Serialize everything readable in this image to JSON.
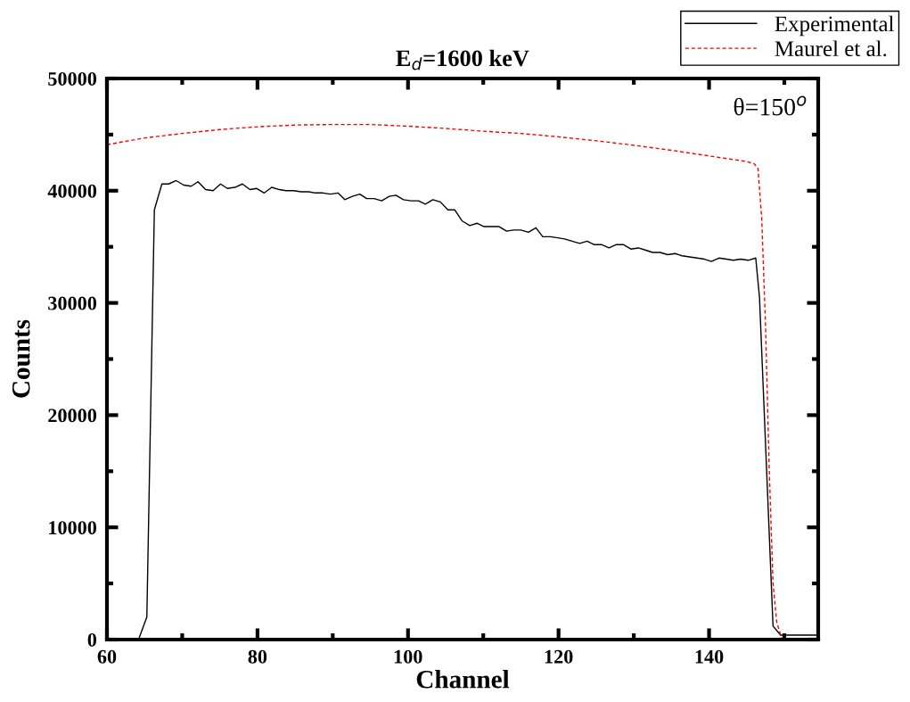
{
  "chart_data": {
    "type": "line",
    "title": "E$_{d}$=1600 keV",
    "xlabel": "Channel",
    "ylabel": "Counts",
    "annotations": [
      "θ=150$^{o}$"
    ],
    "xlim": [
      60,
      154.5
    ],
    "xticks": [
      60,
      80,
      100,
      120,
      140
    ],
    "ylim": [
      0,
      50000
    ],
    "yticks": [
      0,
      10000,
      20000,
      30000,
      40000,
      50000
    ],
    "legend": "top right",
    "grid": false,
    "series": [
      {
        "name": "Experimental",
        "color": "#000000",
        "line_style": "solid",
        "x": [
          64.2,
          65.3,
          66.3,
          67.3,
          68.2,
          69.2,
          70.2,
          71.2,
          72.1,
          73.1,
          74.1,
          75.1,
          76.0,
          77.0,
          78.0,
          79.0,
          79.9,
          80.9,
          81.9,
          82.9,
          83.8,
          84.8,
          85.8,
          86.8,
          87.7,
          88.7,
          89.7,
          90.7,
          91.6,
          92.6,
          93.6,
          94.5,
          95.5,
          96.5,
          97.5,
          98.4,
          99.4,
          100.4,
          101.4,
          102.3,
          103.3,
          104.3,
          105.3,
          106.2,
          107.2,
          108.2,
          109.2,
          110.1,
          111.1,
          112.1,
          113.1,
          114.0,
          115.0,
          116.0,
          117.0,
          117.9,
          118.9,
          119.9,
          120.8,
          121.8,
          122.8,
          123.8,
          124.7,
          125.7,
          126.7,
          127.7,
          128.6,
          129.6,
          130.6,
          131.6,
          132.5,
          133.5,
          134.5,
          135.5,
          136.4,
          137.4,
          138.4,
          139.4,
          140.3,
          141.3,
          142.3,
          143.2,
          144.2,
          145.2,
          146.2,
          146.7,
          148.5,
          149.5,
          154.4
        ],
        "values": [
          0,
          2000,
          38300,
          40600,
          40600,
          40900,
          40500,
          40400,
          40800,
          40100,
          40000,
          40600,
          40200,
          40300,
          40600,
          40100,
          40200,
          39800,
          40300,
          40100,
          40000,
          40000,
          39900,
          39900,
          39800,
          39800,
          39700,
          39800,
          39200,
          39500,
          39700,
          39300,
          39300,
          39100,
          39500,
          39600,
          39200,
          39100,
          39100,
          38800,
          39200,
          39000,
          38300,
          38300,
          37300,
          36900,
          37100,
          36800,
          36800,
          36800,
          36400,
          36500,
          36500,
          36300,
          36700,
          35900,
          35900,
          35800,
          35700,
          35500,
          35300,
          35500,
          35200,
          35200,
          34900,
          35200,
          35200,
          34800,
          34900,
          34700,
          34500,
          34500,
          34300,
          34400,
          34200,
          34100,
          34000,
          33900,
          33700,
          34000,
          33900,
          33800,
          33900,
          33800,
          34000,
          30500,
          1200,
          400,
          400
        ]
      },
      {
        "name": "Maurel et al.",
        "color": "#ff0000",
        "line_style": "dotted",
        "x": [
          60,
          65,
          70,
          75,
          80,
          85,
          90,
          95,
          100,
          105,
          110,
          115,
          120,
          125,
          130,
          135,
          140,
          145,
          146,
          146.5,
          147,
          147.5,
          148,
          148.5,
          149,
          149.7,
          154.5
        ],
        "values": [
          44100,
          44700,
          45100,
          45450,
          45700,
          45850,
          45900,
          45900,
          45750,
          45550,
          45300,
          45100,
          44800,
          44450,
          44050,
          43600,
          43100,
          42600,
          42400,
          42000,
          37500,
          28000,
          15000,
          5000,
          1500,
          0,
          0
        ]
      }
    ]
  }
}
